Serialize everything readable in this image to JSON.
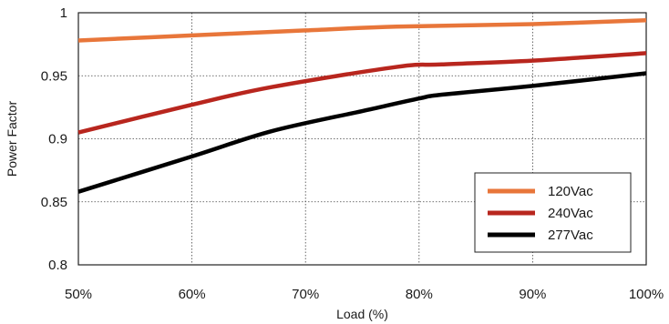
{
  "chart_data": {
    "type": "line",
    "title": "",
    "xlabel": "Load (%)",
    "ylabel": "Power Factor",
    "x_tick_labels": [
      "50%",
      "60%",
      "70%",
      "80%",
      "90%",
      "100%"
    ],
    "y_tick_labels": [
      "0.8",
      "0.85",
      "0.9",
      "0.95",
      "1"
    ],
    "xlim": [
      50,
      100
    ],
    "ylim": [
      0.8,
      1.0
    ],
    "x_ticks": [
      50,
      60,
      70,
      80,
      90,
      100
    ],
    "y_ticks": [
      0.8,
      0.85,
      0.9,
      0.95,
      1.0
    ],
    "grid": true,
    "legend_position": "bottom-right",
    "series": [
      {
        "name": "120Vac",
        "color": "#e8763a",
        "x": [
          50,
          60,
          70,
          78,
          90,
          100
        ],
        "y": [
          0.978,
          0.982,
          0.986,
          0.989,
          0.991,
          0.994
        ]
      },
      {
        "name": "240Vac",
        "color": "#b8261e",
        "x": [
          50,
          60,
          67,
          78,
          82,
          90,
          100
        ],
        "y": [
          0.905,
          0.927,
          0.941,
          0.957,
          0.959,
          0.962,
          0.968
        ]
      },
      {
        "name": "277Vac",
        "color": "#000000",
        "x": [
          50,
          60,
          67,
          75,
          80,
          82,
          90,
          100
        ],
        "y": [
          0.858,
          0.886,
          0.906,
          0.922,
          0.932,
          0.935,
          0.942,
          0.952
        ]
      }
    ]
  }
}
